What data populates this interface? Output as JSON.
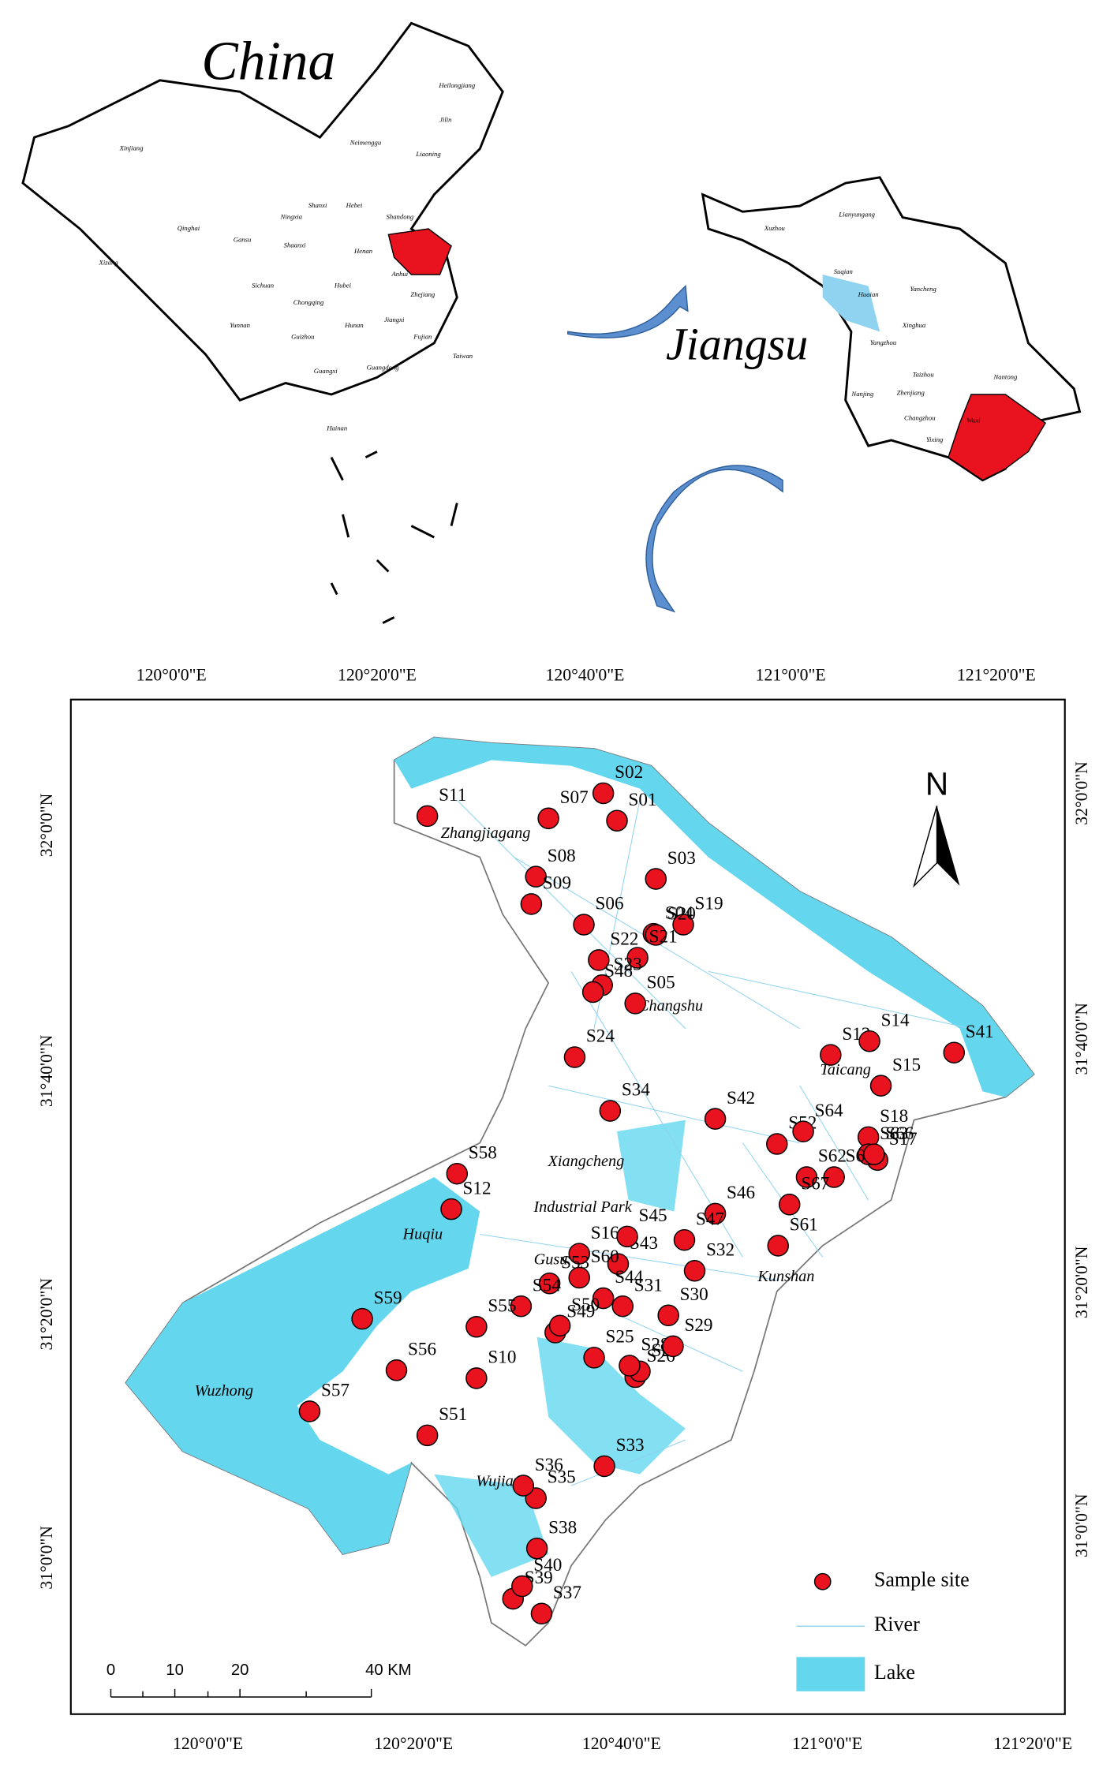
{
  "china_inset": {
    "title": "China",
    "provinces": [
      "Heilongjiang",
      "Jilin",
      "Liaoning",
      "Neimenggu",
      "Xinjiang",
      "Qinghai",
      "Xizang",
      "Gansu",
      "Ningxia",
      "Shanxi",
      "Shaanxi",
      "Hebei",
      "Shandong",
      "Henan",
      "Sichuan",
      "Hubei",
      "Anhui",
      "Zhejiang",
      "Chongqing",
      "Guizhou",
      "Hunan",
      "Jiangxi",
      "Fujian",
      "Yunnan",
      "Guangxi",
      "Guangdong",
      "Hainan",
      "Taiwan"
    ]
  },
  "jiangsu_inset": {
    "title": "Jiangsu",
    "cities": [
      "Lianyungang",
      "Xuzhou",
      "Suqian",
      "Huaian",
      "Yancheng",
      "Xinghua",
      "Yangzhou",
      "Taizhou",
      "Nantong",
      "Nanjing",
      "Zhenjiang",
      "Changzhou",
      "Wuxi",
      "Yixing"
    ]
  },
  "map": {
    "lon_ticks": [
      "120°0'0\"E",
      "120°20'0\"E",
      "120°40'0\"E",
      "121°0'0\"E",
      "121°20'0\"E"
    ],
    "lat_ticks": [
      "31°0'0\"N",
      "31°20'0\"N",
      "31°40'0\"N",
      "32°0'0\"N"
    ],
    "north": "N",
    "districts": [
      "Zhangjiagang",
      "Changshu",
      "Taicang",
      "Xiangcheng",
      "Industrial Park",
      "Huqiu",
      "Gusu",
      "Kunshan",
      "Wuzhong",
      "Wujiang"
    ],
    "sites": [
      "S01",
      "S02",
      "S03",
      "S04",
      "S05",
      "S06",
      "S07",
      "S08",
      "S09",
      "S10",
      "S11",
      "S12",
      "S13",
      "S14",
      "S15",
      "S16",
      "S17",
      "S18",
      "S19",
      "S20",
      "S21",
      "S22",
      "S23",
      "S24",
      "S25",
      "S26",
      "S27",
      "S28",
      "S29",
      "S30",
      "S31",
      "S32",
      "S33",
      "S34",
      "S35",
      "S36",
      "S37",
      "S38",
      "S39",
      "S40",
      "S41",
      "S42",
      "S43",
      "S44",
      "S45",
      "S46",
      "S47",
      "S48",
      "S49",
      "S50",
      "S51",
      "S52",
      "S53",
      "S54",
      "S55",
      "S56",
      "S57",
      "S58",
      "S59",
      "S60",
      "S61",
      "S62",
      "S63",
      "S64",
      "S65",
      "S66",
      "S67"
    ],
    "legend": {
      "site": "Sample site",
      "river": "River",
      "lake": "Lake"
    },
    "scale_bar": [
      "0",
      "10",
      "20",
      "40 KM"
    ]
  }
}
